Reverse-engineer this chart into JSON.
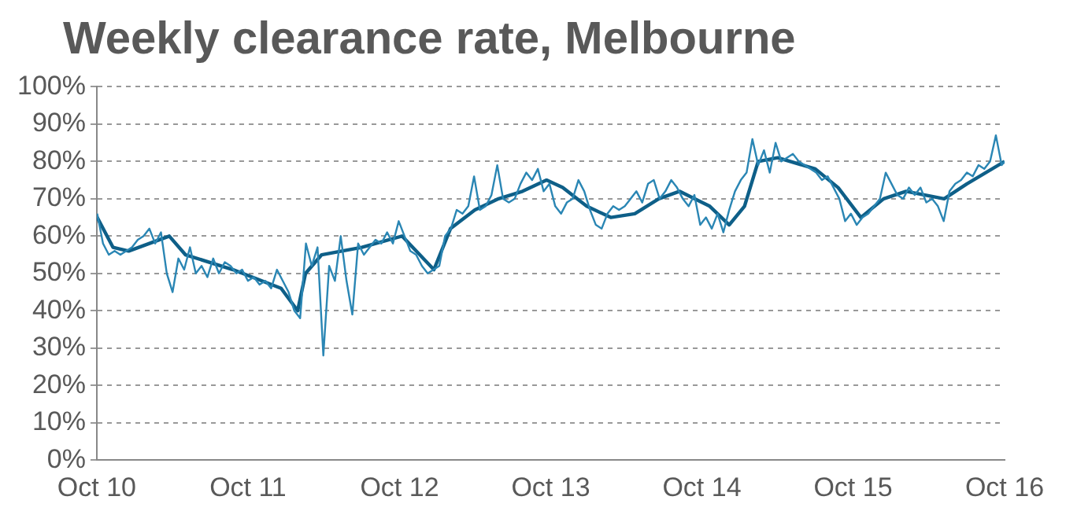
{
  "chart_data": {
    "type": "line",
    "title": "Weekly clearance rate, Melbourne",
    "xlim": [
      "2010-10",
      "2016-10"
    ],
    "xticks": [
      {
        "value": "2010-10",
        "label": "Oct 10"
      },
      {
        "value": "2011-10",
        "label": "Oct 11"
      },
      {
        "value": "2012-10",
        "label": "Oct 12"
      },
      {
        "value": "2013-10",
        "label": "Oct 13"
      },
      {
        "value": "2014-10",
        "label": "Oct 14"
      },
      {
        "value": "2015-10",
        "label": "Oct 15"
      },
      {
        "value": "2016-10",
        "label": "Oct 16"
      }
    ],
    "ylim": [
      0,
      100
    ],
    "yticks": [
      {
        "value": 0,
        "label": "0%"
      },
      {
        "value": 10,
        "label": "10%"
      },
      {
        "value": 20,
        "label": "20%"
      },
      {
        "value": 30,
        "label": "30%"
      },
      {
        "value": 40,
        "label": "40%"
      },
      {
        "value": 50,
        "label": "50%"
      },
      {
        "value": 60,
        "label": "60%"
      },
      {
        "value": 70,
        "label": "70%"
      },
      {
        "value": 80,
        "label": "80%"
      },
      {
        "value": 90,
        "label": "90%"
      },
      {
        "value": 100,
        "label": "100%"
      }
    ],
    "grid": "y",
    "legend": false,
    "marker": "none",
    "line_style": "solid",
    "series": [
      {
        "color": "#2a86b4",
        "x": [
          "2010-10-02",
          "2010-10-16",
          "2010-10-30",
          "2010-11-13",
          "2010-11-27",
          "2010-12-11",
          "2010-12-25",
          "2011-01-08",
          "2011-01-22",
          "2011-02-05",
          "2011-02-19",
          "2011-03-05",
          "2011-03-19",
          "2011-04-02",
          "2011-04-16",
          "2011-04-30",
          "2011-05-14",
          "2011-05-28",
          "2011-06-11",
          "2011-06-25",
          "2011-07-09",
          "2011-07-23",
          "2011-08-06",
          "2011-08-20",
          "2011-09-03",
          "2011-09-17",
          "2011-10-01",
          "2011-10-15",
          "2011-10-29",
          "2011-11-12",
          "2011-11-26",
          "2011-12-10",
          "2011-12-24",
          "2012-01-07",
          "2012-01-21",
          "2012-02-04",
          "2012-02-18",
          "2012-03-03",
          "2012-03-17",
          "2012-03-31",
          "2012-04-14",
          "2012-04-28",
          "2012-05-12",
          "2012-05-26",
          "2012-06-09",
          "2012-06-23",
          "2012-07-07",
          "2012-07-21",
          "2012-08-04",
          "2012-08-18",
          "2012-09-01",
          "2012-09-15",
          "2012-09-29",
          "2012-10-13",
          "2012-10-27",
          "2012-11-10",
          "2012-11-24",
          "2012-12-08",
          "2012-12-22",
          "2013-01-05",
          "2013-01-19",
          "2013-02-02",
          "2013-02-16",
          "2013-03-02",
          "2013-03-16",
          "2013-03-30",
          "2013-04-13",
          "2013-04-27",
          "2013-05-11",
          "2013-05-25",
          "2013-06-08",
          "2013-06-22",
          "2013-07-06",
          "2013-07-20",
          "2013-08-03",
          "2013-08-17",
          "2013-08-31",
          "2013-09-14",
          "2013-09-28",
          "2013-10-12",
          "2013-10-26",
          "2013-11-09",
          "2013-11-23",
          "2013-12-07",
          "2013-12-21",
          "2014-01-04",
          "2014-01-18",
          "2014-02-01",
          "2014-02-15",
          "2014-03-01",
          "2014-03-15",
          "2014-03-29",
          "2014-04-12",
          "2014-04-26",
          "2014-05-10",
          "2014-05-24",
          "2014-06-07",
          "2014-06-21",
          "2014-07-05",
          "2014-07-19",
          "2014-08-02",
          "2014-08-16",
          "2014-08-30",
          "2014-09-13",
          "2014-09-27",
          "2014-10-11",
          "2014-10-25",
          "2014-11-08",
          "2014-11-22",
          "2014-12-06",
          "2014-12-20",
          "2015-01-03",
          "2015-01-17",
          "2015-01-31",
          "2015-02-14",
          "2015-02-28",
          "2015-03-14",
          "2015-03-28",
          "2015-04-11",
          "2015-04-25",
          "2015-05-09",
          "2015-05-23",
          "2015-06-06",
          "2015-06-20",
          "2015-07-04",
          "2015-07-18",
          "2015-08-01",
          "2015-08-15",
          "2015-08-29",
          "2015-09-12",
          "2015-09-26",
          "2015-10-10",
          "2015-10-24",
          "2015-11-07",
          "2015-11-21",
          "2015-12-05",
          "2015-12-19",
          "2016-01-02",
          "2016-01-16",
          "2016-01-30",
          "2016-02-13",
          "2016-02-27",
          "2016-03-12",
          "2016-03-26",
          "2016-04-09",
          "2016-04-23",
          "2016-05-07",
          "2016-05-21",
          "2016-06-04",
          "2016-06-18",
          "2016-07-02",
          "2016-07-16",
          "2016-07-30",
          "2016-08-13",
          "2016-08-27",
          "2016-09-10",
          "2016-09-24",
          "2016-10-01"
        ],
        "values": [
          66,
          58,
          55,
          56,
          55,
          56,
          57,
          59,
          60,
          62,
          58,
          61,
          50,
          45,
          54,
          51,
          57,
          50,
          52,
          49,
          54,
          50,
          53,
          52,
          50,
          51,
          48,
          49,
          47,
          48,
          46,
          51,
          48,
          45,
          40,
          38,
          58,
          52,
          57,
          28,
          52,
          48,
          60,
          48,
          39,
          58,
          55,
          57,
          59,
          58,
          61,
          58,
          64,
          60,
          56,
          55,
          52,
          50,
          51,
          52,
          60,
          62,
          67,
          66,
          68,
          76,
          67,
          68,
          71,
          79,
          70,
          69,
          70,
          74,
          77,
          75,
          78,
          72,
          74,
          68,
          66,
          69,
          70,
          75,
          72,
          67,
          63,
          62,
          66,
          68,
          67,
          68,
          70,
          72,
          69,
          74,
          75,
          70,
          72,
          75,
          73,
          70,
          68,
          71,
          63,
          65,
          62,
          66,
          61,
          67,
          72,
          75,
          77,
          86,
          79,
          83,
          77,
          85,
          80,
          81,
          82,
          80,
          79,
          78,
          77,
          75,
          76,
          73,
          70,
          64,
          66,
          63,
          65,
          66,
          68,
          70,
          77,
          74,
          71,
          70,
          73,
          71,
          73,
          69,
          70,
          68,
          64,
          72,
          74,
          75,
          77,
          76,
          79,
          78,
          80,
          87,
          79,
          80
        ]
      },
      {
        "color": "#0e5f88",
        "x": [
          "2010-10-02",
          "2010-11-09",
          "2010-12-17",
          "2011-03-25",
          "2011-05-03",
          "2011-08-26",
          "2011-12-20",
          "2012-01-29",
          "2012-02-17",
          "2012-03-27",
          "2012-07-02",
          "2012-10-07",
          "2012-12-23",
          "2013-02-01",
          "2013-04-01",
          "2013-05-28",
          "2013-07-25",
          "2013-09-21",
          "2013-10-30",
          "2013-12-27",
          "2014-02-23",
          "2014-04-22",
          "2014-06-19",
          "2014-08-08",
          "2014-10-20",
          "2014-12-06",
          "2015-01-12",
          "2015-02-14",
          "2015-04-02",
          "2015-07-02",
          "2015-08-26",
          "2015-10-20",
          "2015-12-14",
          "2016-02-06",
          "2016-05-08",
          "2016-07-02",
          "2016-10-01"
        ],
        "values": [
          65,
          57,
          56,
          60,
          55,
          51,
          46,
          40,
          50,
          55,
          57,
          60,
          51,
          62,
          67,
          70,
          72,
          75,
          73,
          68,
          65,
          66,
          70,
          72,
          68,
          63,
          68,
          80,
          81,
          78,
          73,
          65,
          70,
          72,
          70,
          74,
          80
        ]
      }
    ]
  }
}
